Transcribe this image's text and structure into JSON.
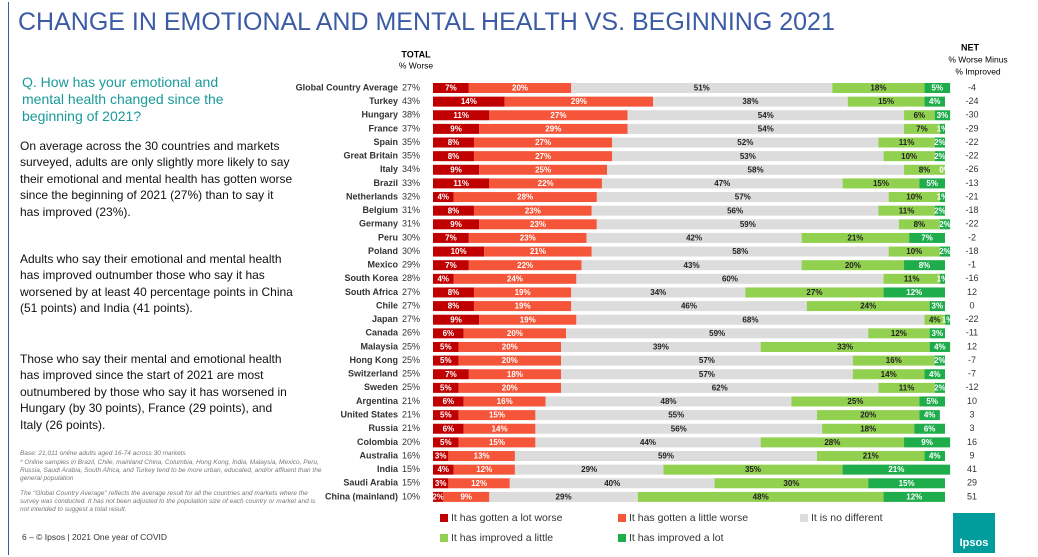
{
  "title": "CHANGE IN EMOTIONAL AND MENTAL HEALTH VS. BEGINNING 2021",
  "question": "Q. How has your emotional and mental health changed since the beginning of 2021?",
  "paragraphs": [
    "On average across the 30 countries and markets surveyed, adults are only slightly more likely to say their emotional and mental health has gotten worse since the beginning of 2021 (27%) than to say it has improved (23%).",
    "Adults who say their emotional and mental health has improved outnumber those who say it has worsened by at least 40 percentage points in China (51 points) and India (41 points).",
    "Those who say their mental and emotional health has improved since the start of 2021 are most outnumbered by those who say it has worsened in Hungary (by 30 points), France (29 points), and Italy (26 points)."
  ],
  "footnotes": [
    "Base: 21,011 online adults aged 16-74 across 30 markets",
    "* Online samples in Brazil, Chile, mainland China, Columbia, Hong Kong, India, Malaysia, Mexico, Peru, Russia, Saudi Arabia, South Africa, and Turkey tend to be more urban, educated, and/or affluent than the general population",
    "The \"Global Country Average\" reflects the average result for all the countries and markets where the survey was conducted. It has not been adjusted to the population size of each country or market and is not intended to suggest a total result."
  ],
  "footer": "6 – © Ipsos | 2021 One year of COVID",
  "logo": "Ipsos",
  "chart_data": {
    "type": "stacked-bar",
    "orientation": "horizontal",
    "xlim": [
      0,
      100
    ],
    "total_header": [
      "TOTAL",
      "% Worse"
    ],
    "net_header": [
      "NET",
      "% Worse Minus",
      "% Improved"
    ],
    "categories": [
      "Global Country Average",
      "Turkey",
      "Hungary",
      "France",
      "Spain",
      "Great Britain",
      "Italy",
      "Brazil",
      "Netherlands",
      "Belgium",
      "Germany",
      "Peru",
      "Poland",
      "Mexico",
      "South Korea",
      "South Africa",
      "Chile",
      "Japan",
      "Canada",
      "Malaysia",
      "Hong Kong",
      "Switzerland",
      "Sweden",
      "Argentina",
      "United States",
      "Russia",
      "Colombia",
      "Australia",
      "India",
      "Saudi Arabia",
      "China (mainland)"
    ],
    "total": [
      "27%",
      "43%",
      "38%",
      "37%",
      "35%",
      "35%",
      "34%",
      "33%",
      "32%",
      "31%",
      "31%",
      "30%",
      "30%",
      "29%",
      "28%",
      "27%",
      "27%",
      "27%",
      "26%",
      "25%",
      "25%",
      "25%",
      "25%",
      "21%",
      "21%",
      "21%",
      "20%",
      "16%",
      "15%",
      "15%",
      "10%"
    ],
    "net": [
      -4,
      -24,
      -30,
      -29,
      -22,
      -22,
      -26,
      -13,
      -21,
      -18,
      -22,
      -2,
      -18,
      -1,
      -16,
      12,
      0,
      -22,
      -11,
      12,
      -7,
      -7,
      -12,
      10,
      3,
      3,
      16,
      9,
      41,
      29,
      51
    ],
    "series": [
      {
        "name": "It has gotten a lot worse",
        "color": "#c00000",
        "label_color": "#ffffff",
        "values": [
          7,
          14,
          11,
          9,
          8,
          8,
          9,
          11,
          4,
          8,
          9,
          7,
          10,
          7,
          4,
          8,
          8,
          9,
          6,
          5,
          5,
          7,
          5,
          6,
          5,
          6,
          5,
          3,
          4,
          3,
          2
        ],
        "value_labels": [
          "7%",
          "14%",
          "11%",
          "9%",
          "8%",
          "8%",
          "9%",
          "11%",
          "4%",
          "8%",
          "9%",
          "7%",
          "10%",
          "7%",
          "4%",
          "8%",
          "8%",
          "9%",
          "6%",
          "5%",
          "5%",
          "7%",
          "5%",
          "6%",
          "5%",
          "6%",
          "5%",
          "3%",
          "4%",
          "3%",
          "2%"
        ]
      },
      {
        "name": "It has gotten a little worse",
        "color": "#f5563a",
        "label_color": "#ffffff",
        "values": [
          20,
          29,
          27,
          29,
          27,
          27,
          25,
          22,
          28,
          23,
          23,
          23,
          21,
          22,
          24,
          19,
          19,
          19,
          20,
          20,
          20,
          18,
          20,
          16,
          15,
          14,
          15,
          13,
          12,
          12,
          9
        ],
        "value_labels": [
          "20%",
          "29%",
          "27%",
          "29%",
          "27%",
          "27%",
          "25%",
          "22%",
          "28%",
          "23%",
          "23%",
          "23%",
          "21%",
          "22%",
          "24%",
          "19%",
          "19%",
          "19%",
          "20%",
          "20%",
          "20%",
          "18%",
          "20%",
          "16%",
          "15%",
          "14%",
          "15%",
          "13%",
          "12%",
          "12%",
          "9%"
        ]
      },
      {
        "name": "It is no different",
        "color": "#dcdcdc",
        "label_color": "#222222",
        "values": [
          51,
          38,
          54,
          54,
          52,
          53,
          58,
          47,
          57,
          56,
          59,
          42,
          58,
          43,
          60,
          34,
          46,
          68,
          59,
          39,
          57,
          57,
          62,
          48,
          55,
          56,
          44,
          59,
          29,
          40,
          29
        ],
        "value_labels": [
          "51%",
          "38%",
          "54%",
          "54%",
          "52%",
          "53%",
          "58%",
          "47%",
          "57%",
          "56%",
          "59%",
          "42%",
          "58%",
          "43%",
          "60%",
          "34%",
          "46%",
          "68%",
          "59%",
          "39%",
          "57%",
          "57%",
          "62%",
          "48%",
          "55%",
          "56%",
          "44%",
          "59%",
          "29%",
          "40%",
          "29%"
        ]
      },
      {
        "name": "It has improved a little",
        "color": "#92d050",
        "label_color": "#222222",
        "values": [
          18,
          15,
          6,
          7,
          11,
          10,
          8,
          15,
          10,
          11,
          8,
          21,
          10,
          20,
          11,
          27,
          24,
          4,
          12,
          33,
          16,
          14,
          11,
          25,
          20,
          18,
          28,
          21,
          35,
          30,
          48
        ],
        "value_labels": [
          "18%",
          "15%",
          "6%",
          "7%",
          "11%",
          "10%",
          "8%",
          "15%",
          "10%",
          "11%",
          "8%",
          "21%",
          "10%",
          "20%",
          "11%",
          "27%",
          "24%",
          "4%",
          "12%",
          "33%",
          "16%",
          "14%",
          "11%",
          "25%",
          "20%",
          "18%",
          "28%",
          "21%",
          "35%",
          "30%",
          "48%"
        ]
      },
      {
        "name": "It has improved a lot",
        "color": "#1fad4b",
        "label_color": "#ffffff",
        "values": [
          5,
          4,
          3,
          1,
          2,
          2,
          0,
          5,
          1,
          2,
          2,
          7,
          2,
          8,
          1,
          12,
          3,
          1,
          3,
          4,
          2,
          4,
          2,
          5,
          4,
          6,
          9,
          4,
          21,
          15,
          12
        ],
        "value_labels": [
          "5%",
          "4%",
          "3%",
          "1%",
          "2%",
          "2%",
          "0%",
          "5%",
          "1%",
          "2%",
          "2%",
          "7%",
          "2%",
          "8%",
          "1%",
          "12%",
          "3%",
          "1%",
          "3%",
          "4%",
          "2%",
          "4%",
          "2%",
          "5%",
          "4%",
          "6%",
          "9%",
          "4%",
          "21%",
          "15%",
          "12%"
        ]
      }
    ]
  }
}
